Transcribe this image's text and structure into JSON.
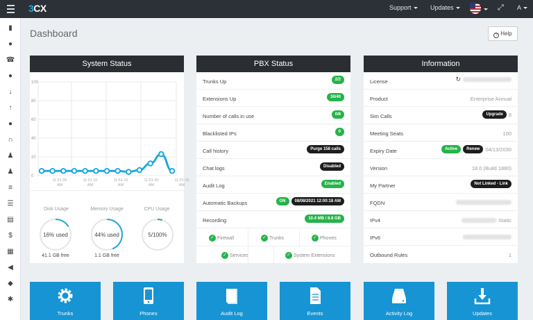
{
  "header": {
    "logo_a": "3",
    "logo_b": "CX",
    "support": "Support",
    "updates": "Updates",
    "user": "A"
  },
  "page": {
    "title": "Dashboard",
    "help": "Help"
  },
  "system_status": {
    "title": "System Status",
    "chart_data": {
      "type": "line",
      "y_ticks": [
        "100",
        "80",
        "60",
        "40",
        "20",
        "0"
      ],
      "ylim": [
        0,
        100
      ],
      "x_labels": [
        [
          "11:51:05",
          "AM"
        ],
        [
          "11:51:10",
          "AM"
        ],
        [
          "11:51:15",
          "AM"
        ],
        [
          "11:51:20",
          "AM"
        ],
        [
          "11:51:25",
          "AM"
        ]
      ],
      "values": [
        5,
        5,
        5,
        5,
        5,
        5,
        5,
        5,
        4,
        6,
        13,
        23,
        5
      ],
      "line_color": "#1fa8df"
    },
    "disk": {
      "label": "Disk Usage",
      "value": "16% used",
      "pct": 16,
      "sub": "41.1 GB free"
    },
    "memory": {
      "label": "Memory Usage",
      "value": "44% used",
      "pct": 44,
      "sub": "1.1 GB free"
    },
    "cpu": {
      "label": "CPU Usage",
      "value": "5/100%",
      "pct": 5
    }
  },
  "pbx": {
    "title": "PBX Status",
    "rows": [
      {
        "k": "Trunks Up",
        "v": "2/2"
      },
      {
        "k": "Extensions Up",
        "v": "36/40"
      },
      {
        "k": "Number of calls in use",
        "v": "0/8"
      },
      {
        "k": "Blacklisted IPs",
        "v": "0"
      },
      {
        "k": "Call history",
        "v": "Purge 158 calls"
      },
      {
        "k": "Chat logs",
        "v": "Disabled"
      },
      {
        "k": "Audit Log",
        "v": "Enabled"
      },
      {
        "k": "Automatic Backups",
        "v": "ON",
        "v2": "08/08/2021 12:00:18 AM"
      },
      {
        "k": "Recording",
        "v": "10.4 MB / 8.8 GB"
      }
    ],
    "services": [
      "Firewall",
      "Trunks",
      "Phones",
      "Services",
      "System Extensions"
    ]
  },
  "info": {
    "title": "Information",
    "rows": [
      {
        "k": "License"
      },
      {
        "k": "Product",
        "v": "Enterprise Annual"
      },
      {
        "k": "Sim Calls",
        "badge": "Upgrade",
        "v": "8"
      },
      {
        "k": "Meeting Seats",
        "v": "100"
      },
      {
        "k": "Expiry Date",
        "badge1": "Active",
        "badge2": "Renew",
        "v": "04/13/2030"
      },
      {
        "k": "Version",
        "v": "18.0 (Build 1880)"
      },
      {
        "k": "My Partner",
        "badge": "Not Linked - Link"
      },
      {
        "k": "FQDN"
      },
      {
        "k": "IPv4",
        "v": "Static"
      },
      {
        "k": "IPv6"
      },
      {
        "k": "Outbound Rules",
        "v": "1"
      }
    ]
  },
  "tiles": [
    "Trunks",
    "Phones",
    "Audit Log",
    "Events",
    "Activity Log",
    "Updates"
  ],
  "colors": {
    "accent": "#1794d3",
    "green": "#25b34a",
    "header": "#2a2d31"
  }
}
